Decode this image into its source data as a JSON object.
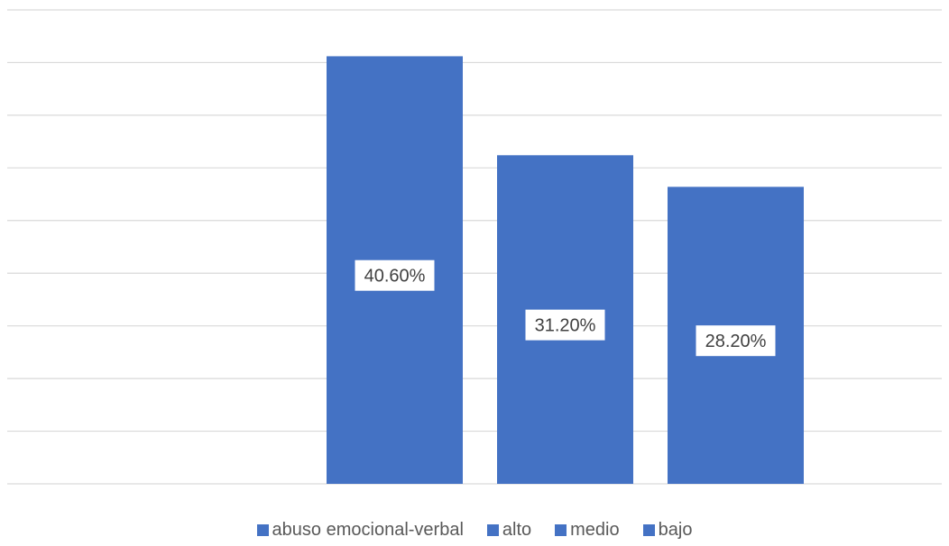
{
  "chart_data": {
    "type": "bar",
    "categories": [
      "abuso emocional-verbal",
      "alto",
      "medio",
      "bajo"
    ],
    "values": [
      null,
      40.6,
      31.2,
      28.2
    ],
    "value_labels": [
      "",
      "40.60%",
      "31.20%",
      "28.20%"
    ],
    "ylim": [
      0,
      45
    ],
    "grid": true,
    "legend_position": "bottom",
    "series_color": "#4472C4",
    "gridline_color": "#D9D9D9"
  },
  "legend": [
    {
      "label": "abuso emocional-verbal"
    },
    {
      "label": "alto"
    },
    {
      "label": "medio"
    },
    {
      "label": "bajo"
    }
  ]
}
